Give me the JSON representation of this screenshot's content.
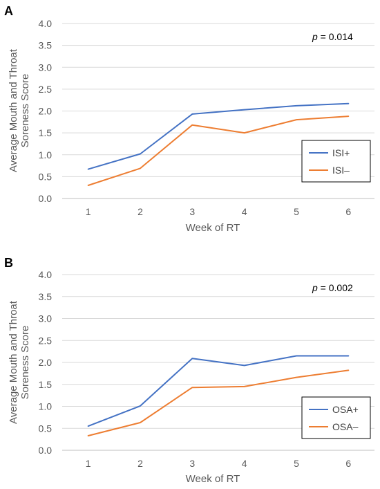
{
  "chart_data": [
    {
      "type": "line",
      "panel_label": "A",
      "x": [
        1,
        2,
        3,
        4,
        5,
        6
      ],
      "series": [
        {
          "name": "ISI+",
          "color": "#4472c4",
          "values": [
            0.67,
            1.02,
            1.93,
            2.03,
            2.12,
            2.17
          ]
        },
        {
          "name": "ISI–",
          "color": "#ed7d31",
          "values": [
            0.3,
            0.69,
            1.68,
            1.5,
            1.8,
            1.88
          ]
        }
      ],
      "xlabel": "Week of RT",
      "ylabel_lines": [
        "Average Mouth and Throat",
        "Soreness Score"
      ],
      "ylim": [
        0,
        4.0
      ],
      "yticks": [
        "0.0",
        "0.5",
        "1.0",
        "1.5",
        "2.0",
        "2.5",
        "3.0",
        "3.5",
        "4.0"
      ],
      "xticks": [
        "1",
        "2",
        "3",
        "4",
        "5",
        "6"
      ],
      "annotation": {
        "p": "p",
        "rest": " = 0.014"
      },
      "grid": true,
      "legend_position": "right"
    },
    {
      "type": "line",
      "panel_label": "B",
      "x": [
        1,
        2,
        3,
        4,
        5,
        6
      ],
      "series": [
        {
          "name": "OSA+",
          "color": "#4472c4",
          "values": [
            0.55,
            1.01,
            2.09,
            1.93,
            2.15,
            2.15
          ]
        },
        {
          "name": "OSA–",
          "color": "#ed7d31",
          "values": [
            0.33,
            0.63,
            1.43,
            1.45,
            1.66,
            1.82
          ]
        }
      ],
      "xlabel": "Week of RT",
      "ylabel_lines": [
        "Average Mouth and Throat",
        "Soreness Score"
      ],
      "ylim": [
        0,
        4.0
      ],
      "yticks": [
        "0.0",
        "0.5",
        "1.0",
        "1.5",
        "2.0",
        "2.5",
        "3.0",
        "3.5",
        "4.0"
      ],
      "xticks": [
        "1",
        "2",
        "3",
        "4",
        "5",
        "6"
      ],
      "annotation": {
        "p": "p",
        "rest": " = 0.002"
      },
      "grid": true,
      "legend_position": "right"
    }
  ]
}
